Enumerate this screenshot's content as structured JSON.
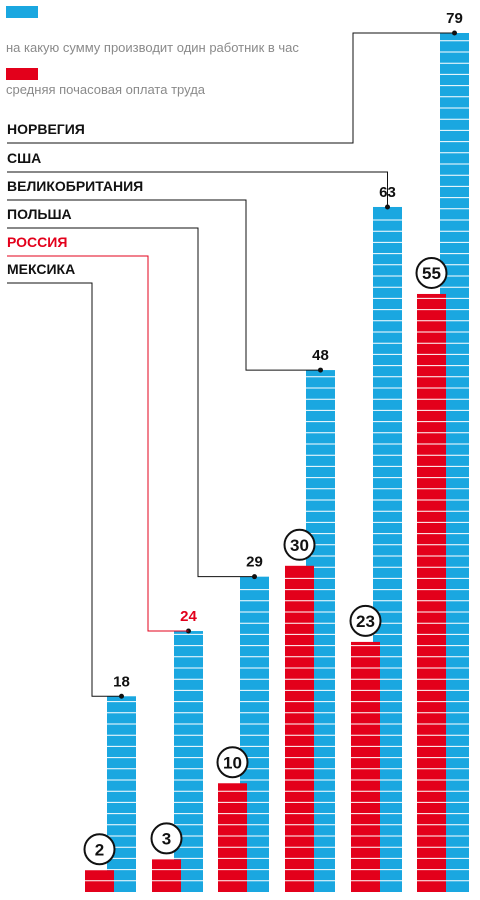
{
  "legend": [
    {
      "label": "на какую сумму производит один работник в час",
      "color": "#1aa7e0"
    },
    {
      "label": "средняя почасовая оплата труда",
      "color": "#e3001b"
    }
  ],
  "chart_data": {
    "type": "bar",
    "title": "",
    "xlabel": "",
    "ylabel": "",
    "categories": [
      "МЕКСИКА",
      "РОССИЯ",
      "ПОЛЬША",
      "ВЕЛИКОБРИТАНИЯ",
      "США",
      "НОРВЕГИЯ"
    ],
    "label_order": [
      "НОРВЕГИЯ",
      "США",
      "ВЕЛИКОБРИТАНИЯ",
      "ПОЛЬША",
      "РОССИЯ",
      "МЕКСИКА"
    ],
    "highlight": "РОССИЯ",
    "highlight_color": "#e3001b",
    "ylim": [
      0,
      79
    ],
    "series": [
      {
        "name": "на какую сумму производит один работник в час",
        "color": "#1aa7e0",
        "values": [
          18,
          24,
          29,
          48,
          63,
          79
        ]
      },
      {
        "name": "средняя почасовая оплата труда",
        "color": "#e3001b",
        "values": [
          2,
          3,
          10,
          30,
          23,
          55
        ]
      }
    ],
    "grid": false,
    "legend_position": "top-left"
  }
}
